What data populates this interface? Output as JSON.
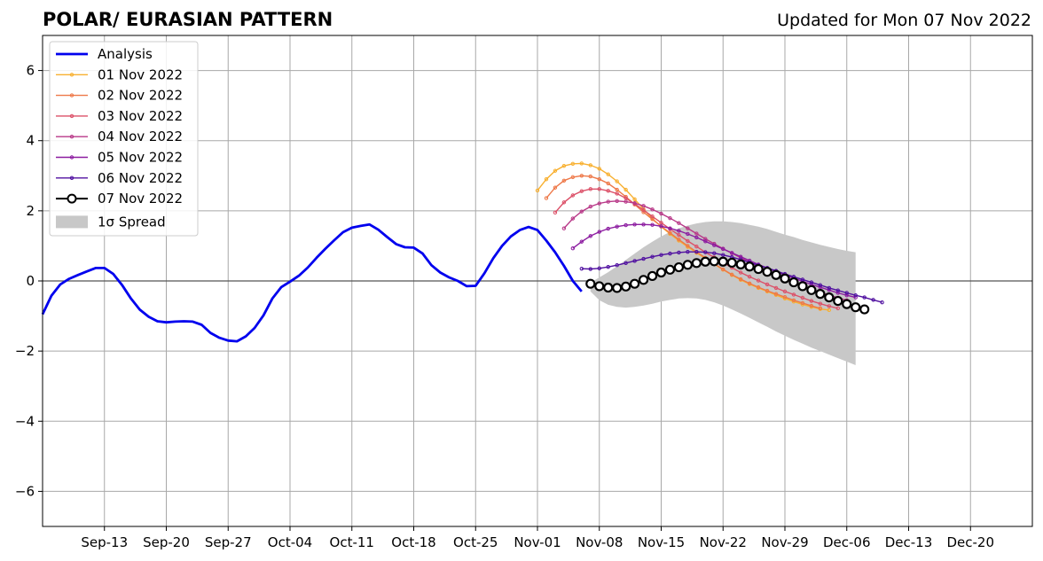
{
  "title_left": "POLAR/ EURASIAN  PATTERN",
  "title_right": "Updated for Mon 07 Nov 2022",
  "chart_data": {
    "type": "line",
    "x_start": "2022-09-06",
    "xlim": [
      "2022-09-06",
      "2022-12-27"
    ],
    "ylim": [
      -7,
      7
    ],
    "y_ticks": [
      -6,
      -4,
      -2,
      0,
      2,
      4,
      6
    ],
    "y_tick_labels": [
      "−6",
      "−4",
      "−2",
      "0",
      "2",
      "4",
      "6"
    ],
    "x_ticks": [
      "2022-09-13",
      "2022-09-20",
      "2022-09-27",
      "2022-10-04",
      "2022-10-11",
      "2022-10-18",
      "2022-10-25",
      "2022-11-01",
      "2022-11-08",
      "2022-11-15",
      "2022-11-22",
      "2022-11-29",
      "2022-12-06",
      "2022-12-13",
      "2022-12-20"
    ],
    "x_tick_labels": [
      "Sep-13",
      "Sep-20",
      "Sep-27",
      "Oct-04",
      "Oct-11",
      "Oct-18",
      "Oct-25",
      "Nov-01",
      "Nov-08",
      "Nov-15",
      "Nov-22",
      "Nov-29",
      "Dec-06",
      "Dec-13",
      "Dec-20"
    ],
    "grid": true,
    "legend_position": "top-left",
    "colors": {
      "analysis": "#0000ee",
      "spread": "#c8c8c8"
    },
    "analysis": {
      "name": "Analysis",
      "start": "2022-09-06",
      "values": [
        -0.95,
        -0.42,
        -0.1,
        0.06,
        0.17,
        0.27,
        0.37,
        0.37,
        0.2,
        -0.12,
        -0.5,
        -0.82,
        -1.02,
        -1.15,
        -1.18,
        -1.16,
        -1.15,
        -1.16,
        -1.25,
        -1.48,
        -1.62,
        -1.7,
        -1.72,
        -1.58,
        -1.34,
        -0.98,
        -0.5,
        -0.18,
        -0.02,
        0.15,
        0.38,
        0.66,
        0.92,
        1.16,
        1.39,
        1.52,
        1.57,
        1.61,
        1.46,
        1.25,
        1.05,
        0.96,
        0.95,
        0.78,
        0.45,
        0.24,
        0.1,
        0.0,
        -0.15,
        -0.14,
        0.22,
        0.65,
        1.0,
        1.27,
        1.45,
        1.54,
        1.45,
        1.15,
        0.82,
        0.43,
        0.0,
        -0.3
      ]
    },
    "series": [
      {
        "name": "01 Nov 2022",
        "color": "#f8b030",
        "start": "2022-11-01",
        "values": [
          2.58,
          2.9,
          3.14,
          3.28,
          3.34,
          3.35,
          3.3,
          3.2,
          3.04,
          2.84,
          2.6,
          2.33,
          2.05,
          1.78,
          1.55,
          1.34,
          1.15,
          0.97,
          0.8,
          0.64,
          0.48,
          0.32,
          0.17,
          0.03,
          -0.09,
          -0.2,
          -0.3,
          -0.4,
          -0.5,
          -0.59,
          -0.67,
          -0.74,
          -0.8,
          -0.83
        ]
      },
      {
        "name": "02 Nov 2022",
        "color": "#ee7848",
        "start": "2022-11-02",
        "values": [
          2.36,
          2.66,
          2.86,
          2.96,
          3.0,
          2.98,
          2.9,
          2.78,
          2.6,
          2.4,
          2.18,
          1.96,
          1.76,
          1.56,
          1.37,
          1.18,
          1.0,
          0.83,
          0.66,
          0.49,
          0.33,
          0.18,
          0.05,
          -0.07,
          -0.18,
          -0.28,
          -0.37,
          -0.46,
          -0.55,
          -0.63,
          -0.71,
          -0.78
        ]
      },
      {
        "name": "03 Nov 2022",
        "color": "#dc5068",
        "start": "2022-11-03",
        "values": [
          1.95,
          2.24,
          2.44,
          2.56,
          2.62,
          2.62,
          2.57,
          2.49,
          2.36,
          2.2,
          2.02,
          1.84,
          1.66,
          1.48,
          1.31,
          1.14,
          0.98,
          0.82,
          0.67,
          0.52,
          0.38,
          0.24,
          0.12,
          0.01,
          -0.1,
          -0.2,
          -0.3,
          -0.39,
          -0.48,
          -0.57,
          -0.65,
          -0.72,
          -0.78
        ]
      },
      {
        "name": "04 Nov 2022",
        "color": "#b83888",
        "start": "2022-11-04",
        "values": [
          1.5,
          1.78,
          1.98,
          2.12,
          2.21,
          2.26,
          2.28,
          2.26,
          2.22,
          2.14,
          2.04,
          1.92,
          1.79,
          1.65,
          1.5,
          1.35,
          1.2,
          1.06,
          0.92,
          0.79,
          0.66,
          0.53,
          0.41,
          0.29,
          0.18,
          0.07,
          -0.04,
          -0.14,
          -0.23,
          -0.32,
          -0.4,
          -0.48,
          -0.55
        ]
      },
      {
        "name": "05 Nov 2022",
        "color": "#8c1ca0",
        "start": "2022-11-05",
        "values": [
          0.93,
          1.12,
          1.28,
          1.4,
          1.49,
          1.55,
          1.59,
          1.61,
          1.61,
          1.6,
          1.56,
          1.5,
          1.43,
          1.34,
          1.24,
          1.13,
          1.02,
          0.91,
          0.8,
          0.69,
          0.58,
          0.47,
          0.37,
          0.27,
          0.17,
          0.08,
          -0.01,
          -0.1,
          -0.18,
          -0.26,
          -0.34,
          -0.41,
          -0.47
        ]
      },
      {
        "name": "06 Nov 2022",
        "color": "#5010a0",
        "start": "2022-11-06",
        "values": [
          0.35,
          0.34,
          0.36,
          0.4,
          0.45,
          0.51,
          0.57,
          0.63,
          0.69,
          0.74,
          0.78,
          0.81,
          0.83,
          0.83,
          0.82,
          0.79,
          0.74,
          0.68,
          0.61,
          0.53,
          0.45,
          0.37,
          0.29,
          0.2,
          0.12,
          0.04,
          -0.04,
          -0.12,
          -0.2,
          -0.27,
          -0.34,
          -0.41,
          -0.47,
          -0.54,
          -0.61
        ]
      },
      {
        "name": "07 Nov 2022",
        "color": "#000000",
        "marker": "open-circle",
        "start": "2022-11-07",
        "values": [
          -0.08,
          -0.15,
          -0.19,
          -0.2,
          -0.16,
          -0.08,
          0.03,
          0.14,
          0.24,
          0.32,
          0.39,
          0.46,
          0.51,
          0.55,
          0.56,
          0.55,
          0.52,
          0.47,
          0.41,
          0.34,
          0.26,
          0.17,
          0.07,
          -0.04,
          -0.15,
          -0.26,
          -0.37,
          -0.47,
          -0.57,
          -0.66,
          -0.75,
          -0.81
        ]
      }
    ],
    "spread": {
      "name": "1σ Spread",
      "start": "2022-11-07",
      "upper": [
        -0.05,
        0.1,
        0.25,
        0.42,
        0.6,
        0.78,
        0.96,
        1.12,
        1.27,
        1.4,
        1.5,
        1.58,
        1.64,
        1.68,
        1.7,
        1.7,
        1.68,
        1.65,
        1.6,
        1.55,
        1.48,
        1.4,
        1.32,
        1.25,
        1.17,
        1.1,
        1.03,
        0.97,
        0.91,
        0.86,
        0.82
      ],
      "lower": [
        -0.3,
        -0.55,
        -0.68,
        -0.74,
        -0.76,
        -0.74,
        -0.7,
        -0.65,
        -0.59,
        -0.54,
        -0.5,
        -0.49,
        -0.5,
        -0.54,
        -0.61,
        -0.7,
        -0.81,
        -0.93,
        -1.05,
        -1.18,
        -1.31,
        -1.44,
        -1.56,
        -1.68,
        -1.79,
        -1.9,
        -2.0,
        -2.1,
        -2.2,
        -2.3,
        -2.4
      ]
    }
  }
}
